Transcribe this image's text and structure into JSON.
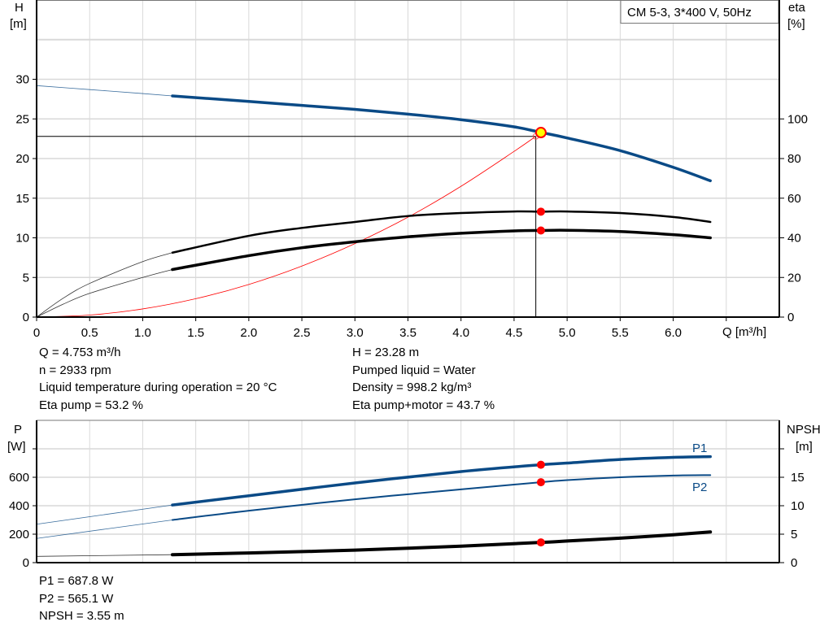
{
  "chart_data": [
    {
      "type": "line",
      "title": "CM 5-3, 3*400 V, 50Hz",
      "xlabel": "Q [m³/h]",
      "ylabel_left": {
        "name": "H",
        "unit": "[m]"
      },
      "ylabel_right": {
        "name": "eta",
        "unit": "[%]"
      },
      "xlim": [
        0,
        7
      ],
      "ylim_left": [
        0,
        40
      ],
      "ylim_right": [
        0,
        160
      ],
      "grid": true,
      "x_ticks": [
        "0",
        "0.5",
        "1.0",
        "1.5",
        "2.0",
        "2.5",
        "3.0",
        "3.5",
        "4.0",
        "4.5",
        "5.0",
        "5.5",
        "6.0"
      ],
      "y_ticks_left": [
        "0",
        "5",
        "10",
        "15",
        "20",
        "25",
        "30"
      ],
      "y_ticks_right": [
        "0",
        "20",
        "40",
        "60",
        "80",
        "100"
      ],
      "series": [
        {
          "id": "head",
          "axis": "left",
          "color": "#0a4a86",
          "thin_until": 1.28,
          "x": [
            0,
            0.5,
            1.0,
            1.28,
            2.0,
            2.5,
            3.0,
            3.5,
            4.0,
            4.5,
            4.75,
            5.0,
            5.5,
            6.0,
            6.35
          ],
          "y": [
            29.2,
            28.7,
            28.2,
            27.9,
            27.2,
            26.7,
            26.2,
            25.6,
            24.9,
            24.0,
            23.3,
            22.6,
            21.0,
            18.9,
            17.2
          ]
        },
        {
          "id": "eta-pump",
          "axis": "right",
          "color": "#000000",
          "thin_until": 1.28,
          "x": [
            0,
            0.25,
            0.5,
            1.0,
            1.28,
            2.0,
            2.5,
            3.0,
            3.5,
            4.0,
            4.5,
            4.75,
            5.0,
            5.5,
            6.0,
            6.35
          ],
          "y": [
            0,
            9.5,
            17,
            28,
            32.5,
            41,
            45,
            48,
            51,
            52.5,
            53.3,
            53.2,
            53.3,
            52.5,
            50.5,
            48
          ]
        },
        {
          "id": "eta-pump-motor",
          "axis": "right",
          "color": "#000000",
          "thin_until": 1.28,
          "x": [
            0,
            0.25,
            0.5,
            1.0,
            1.28,
            2.0,
            2.5,
            3.0,
            3.5,
            4.0,
            4.5,
            4.75,
            5.0,
            5.5,
            6.0,
            6.35
          ],
          "y": [
            0,
            6.5,
            12,
            20,
            24,
            31,
            35,
            38,
            40.5,
            42.3,
            43.5,
            43.7,
            43.8,
            43.2,
            41.6,
            40
          ]
        },
        {
          "id": "system-curve",
          "axis": "left",
          "color": "#ff0000",
          "x": [
            0,
            0.5,
            1.0,
            1.5,
            2.0,
            2.5,
            3.0,
            3.5,
            4.0,
            4.5,
            4.705
          ],
          "y": [
            0,
            0.26,
            1.03,
            2.32,
            4.12,
            6.44,
            9.27,
            12.6,
            16.5,
            20.9,
            22.8
          ]
        }
      ],
      "operating_point": {
        "q": 4.753,
        "h": 23.28,
        "eta_pump": 53.2,
        "eta_total": 43.7
      },
      "system_point": {
        "q": 4.705,
        "h": 22.8
      }
    },
    {
      "type": "line",
      "ylabel_left": {
        "name": "P",
        "unit": "[W]"
      },
      "ylabel_right": {
        "name": "NPSH",
        "unit": "[m]"
      },
      "xlim": [
        0,
        7
      ],
      "ylim_left": [
        0,
        1000
      ],
      "ylim_right": [
        0,
        25
      ],
      "grid": true,
      "y_ticks_left": [
        "0",
        "200",
        "400",
        "600"
      ],
      "y_ticks_right": [
        "0",
        "5",
        "10",
        "15"
      ],
      "series": [
        {
          "id": "p1",
          "name": "P1",
          "axis": "left",
          "color": "#0a4a86",
          "thin_until": 1.28,
          "x": [
            0,
            1.28,
            2.0,
            3.0,
            4.0,
            4.75,
            5.0,
            5.5,
            6.0,
            6.35
          ],
          "y": [
            270,
            405,
            470,
            560,
            640,
            688,
            700,
            725,
            740,
            745
          ]
        },
        {
          "id": "p2",
          "name": "P2",
          "axis": "left",
          "color": "#0a4a86",
          "thin_until": 1.28,
          "x": [
            0,
            1.28,
            2.0,
            3.0,
            4.0,
            4.75,
            5.0,
            5.5,
            6.0,
            6.35
          ],
          "y": [
            170,
            300,
            365,
            445,
            515,
            565,
            580,
            600,
            612,
            615
          ]
        },
        {
          "id": "npsh",
          "axis": "right",
          "color": "#000000",
          "thin_until": 1.28,
          "x": [
            0,
            1.28,
            2.0,
            3.0,
            4.0,
            4.75,
            5.0,
            5.5,
            6.0,
            6.35
          ],
          "y": [
            1.1,
            1.4,
            1.7,
            2.2,
            2.9,
            3.55,
            3.8,
            4.3,
            4.9,
            5.4
          ]
        }
      ],
      "operating_point": {
        "q": 4.753,
        "p1": 687.8,
        "p2": 565.1,
        "npsh": 3.55
      }
    }
  ],
  "info_top": {
    "q": "Q = 4.753 m³/h",
    "n": "n = 2933 rpm",
    "temp": "Liquid temperature during operation = 20 °C",
    "eta_pump": "Eta pump = 53.2 %",
    "h": "H = 23.28 m",
    "liquid": "Pumped liquid = Water",
    "density": "Density = 998.2 kg/m³",
    "eta_total": "Eta pump+motor = 43.7 %"
  },
  "info_bottom": {
    "p1": "P1 = 687.8 W",
    "p2": "P2 = 565.1 W",
    "npsh": "NPSH = 3.55 m"
  },
  "colors": {
    "blue": "#0a4a86",
    "marker": "#ff0000",
    "op_point": "#ffff00",
    "grid": "#d9d9d9"
  }
}
